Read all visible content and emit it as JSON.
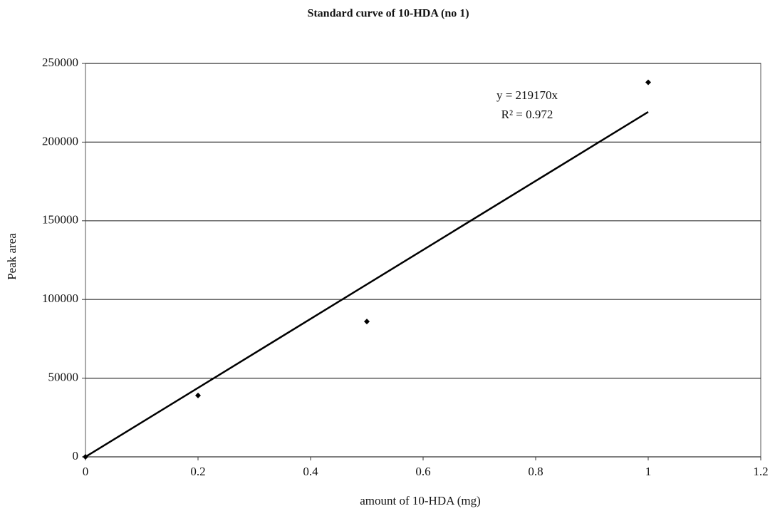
{
  "chart_data": {
    "type": "scatter",
    "title": "Standard curve of 10-HDA (no 1)",
    "x_label": "amount of 10-HDA (mg)",
    "y_label": "Peak area",
    "series": [
      {
        "name": "Peak area",
        "color": "#000000",
        "x": [
          0,
          0.2,
          0.5,
          1.0
        ],
        "values": [
          0,
          39000,
          86000,
          238000
        ]
      }
    ],
    "trendline": {
      "slope": 219170,
      "label": "y = 219170x",
      "color": "#000000"
    },
    "r_squared": {
      "value": 0.972,
      "label": "R² = 0.972"
    },
    "xlim": [
      0,
      1.2
    ],
    "xticks": [
      0,
      0.2,
      0.4,
      0.6,
      0.8,
      1,
      1.2
    ],
    "ylim": [
      0,
      250000
    ],
    "yticks": [
      0,
      50000,
      100000,
      150000,
      200000,
      250000
    ],
    "grid": true
  }
}
